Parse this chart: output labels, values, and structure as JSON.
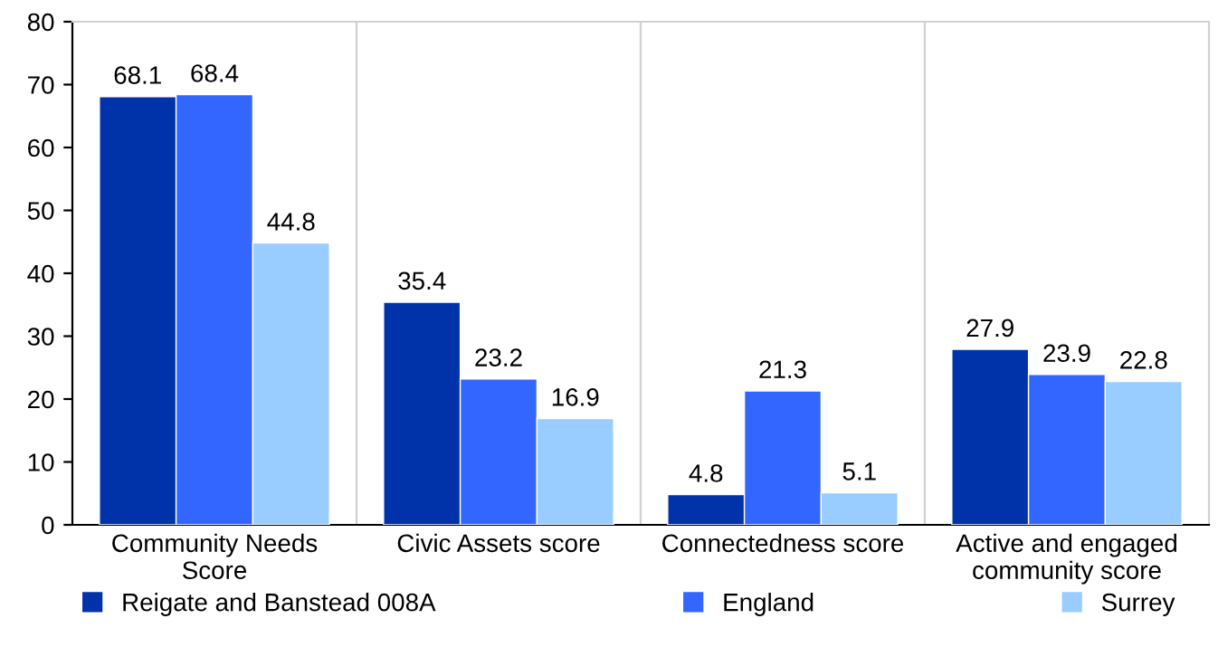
{
  "chart_data": {
    "type": "bar",
    "categories": [
      "Community Needs\nScore",
      "Civic Assets score",
      "Connectedness score",
      "Active and engaged\ncommunity score"
    ],
    "series": [
      {
        "name": "Reigate and Banstead 008A",
        "color": "#0033aa",
        "values": [
          68.1,
          35.4,
          4.8,
          27.9
        ]
      },
      {
        "name": "England",
        "color": "#3366ff",
        "values": [
          68.4,
          23.2,
          21.3,
          23.9
        ]
      },
      {
        "name": "Surrey",
        "color": "#99ccff",
        "values": [
          44.8,
          16.9,
          5.1,
          22.8
        ]
      }
    ],
    "ylim": [
      0,
      80
    ],
    "yticks": [
      0,
      10,
      20,
      30,
      40,
      50,
      60,
      70,
      80
    ],
    "grid": "x",
    "legend": "bottom",
    "data_labels": true
  }
}
